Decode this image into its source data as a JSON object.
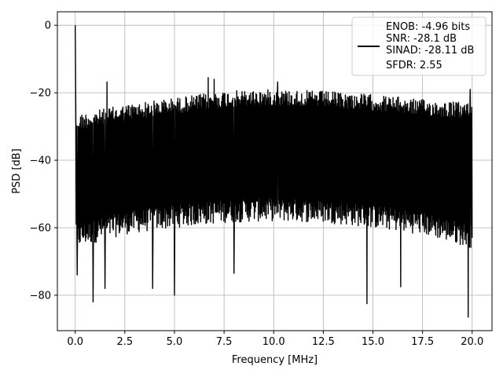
{
  "chart_data": {
    "type": "line",
    "title": "",
    "xlabel": "Frequency [MHz]",
    "ylabel": "PSD [dB]",
    "xlim": [
      -0.9,
      21.0
    ],
    "ylim": [
      -90.5,
      4.0
    ],
    "xticks": [
      0.0,
      2.5,
      5.0,
      7.5,
      10.0,
      12.5,
      15.0,
      17.5,
      20.0
    ],
    "xtick_labels": [
      "0.0",
      "2.5",
      "5.0",
      "7.5",
      "10.0",
      "12.5",
      "15.0",
      "17.5",
      "20.0"
    ],
    "yticks": [
      0,
      -20,
      -40,
      -60,
      -80
    ],
    "ytick_labels": [
      "0",
      "−20",
      "−40",
      "−60",
      "−80"
    ],
    "grid": true,
    "legend_position": "top-right",
    "legend_lines": [
      "ENOB: -4.96 bits",
      "SNR: -28.1 dB",
      "SINAD: -28.11 dB",
      "SFDR: 2.55"
    ],
    "series": [
      {
        "color": "#000000",
        "x_range": [
          0.0,
          20.0
        ],
        "points": 1200,
        "envelope_upper": [
          [
            0.0,
            -26.5
          ],
          [
            2.5,
            -23.5
          ],
          [
            5.0,
            -21.5
          ],
          [
            7.5,
            -19.5
          ],
          [
            10.0,
            -19.0
          ],
          [
            12.5,
            -19.5
          ],
          [
            15.0,
            -20.5
          ],
          [
            17.5,
            -22.0
          ],
          [
            20.0,
            -23.0
          ]
        ],
        "envelope_lower": [
          [
            0.0,
            -66.0
          ],
          [
            2.5,
            -62.0
          ],
          [
            5.0,
            -60.0
          ],
          [
            7.5,
            -58.5
          ],
          [
            10.0,
            -58.0
          ],
          [
            12.5,
            -58.5
          ],
          [
            15.0,
            -60.0
          ],
          [
            17.5,
            -62.0
          ],
          [
            20.0,
            -66.0
          ]
        ],
        "peaks": [
          {
            "x": 0.0,
            "y": 0.0
          },
          {
            "x": 0.02,
            "y": -18.0
          },
          {
            "x": 1.6,
            "y": -16.8
          },
          {
            "x": 6.7,
            "y": -15.5
          },
          {
            "x": 7.0,
            "y": -16.0
          },
          {
            "x": 10.2,
            "y": -16.8
          },
          {
            "x": 19.9,
            "y": -19.0
          }
        ],
        "troughs": [
          {
            "x": 0.1,
            "y": -74.0
          },
          {
            "x": 0.9,
            "y": -82.0
          },
          {
            "x": 1.5,
            "y": -78.0
          },
          {
            "x": 3.9,
            "y": -78.0
          },
          {
            "x": 5.0,
            "y": -80.0
          },
          {
            "x": 8.0,
            "y": -73.5
          },
          {
            "x": 14.7,
            "y": -82.5
          },
          {
            "x": 16.4,
            "y": -77.5
          },
          {
            "x": 19.8,
            "y": -86.5
          }
        ]
      }
    ]
  }
}
